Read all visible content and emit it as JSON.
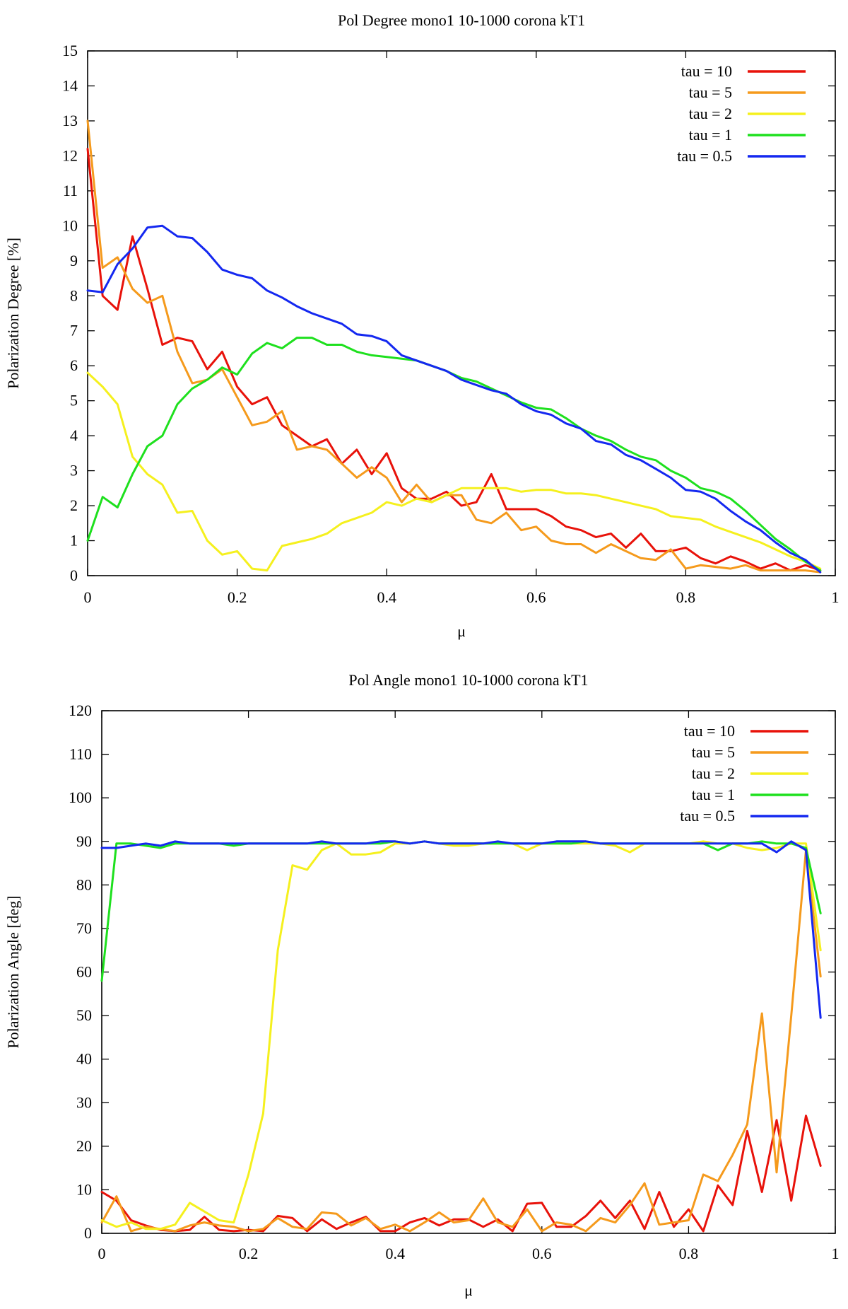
{
  "chart_data": [
    {
      "type": "line",
      "title": "Pol Degree mono1 10-1000 corona kT1",
      "xlabel": "μ",
      "ylabel": "Polarization Degree [%]",
      "xlim": [
        0,
        1
      ],
      "ylim": [
        0,
        15
      ],
      "xticks": [
        0,
        0.2,
        0.4,
        0.6,
        0.8,
        1
      ],
      "xtick_labels": [
        "0",
        "0.2",
        "0.4",
        "0.6",
        "0.8",
        "1"
      ],
      "yticks": [
        0,
        1,
        2,
        3,
        4,
        5,
        6,
        7,
        8,
        9,
        10,
        11,
        12,
        13,
        14,
        15
      ],
      "ytick_labels": [
        "0",
        "1",
        "2",
        "3",
        "4",
        "5",
        "6",
        "7",
        "8",
        "9",
        "10",
        "11",
        "12",
        "13",
        "14",
        "15"
      ],
      "grid": false,
      "legend_position": "top-right",
      "x": [
        0,
        0.02,
        0.04,
        0.06,
        0.08,
        0.1,
        0.12,
        0.14,
        0.16,
        0.18,
        0.2,
        0.22,
        0.24,
        0.26,
        0.28,
        0.3,
        0.32,
        0.34,
        0.36,
        0.38,
        0.4,
        0.42,
        0.44,
        0.46,
        0.48,
        0.5,
        0.52,
        0.54,
        0.56,
        0.58,
        0.6,
        0.62,
        0.64,
        0.66,
        0.68,
        0.7,
        0.72,
        0.74,
        0.76,
        0.78,
        0.8,
        0.82,
        0.84,
        0.86,
        0.88,
        0.9,
        0.92,
        0.94,
        0.96,
        0.98
      ],
      "series": [
        {
          "name": "tau = 10",
          "color": "#e8120a",
          "values": [
            12.2,
            8.0,
            7.6,
            9.7,
            8.2,
            6.6,
            6.8,
            6.7,
            5.9,
            6.4,
            5.4,
            4.9,
            5.1,
            4.3,
            4.0,
            3.7,
            3.9,
            3.2,
            3.6,
            2.9,
            3.5,
            2.5,
            2.2,
            2.2,
            2.4,
            2.0,
            2.1,
            2.9,
            1.9,
            1.9,
            1.9,
            1.7,
            1.4,
            1.3,
            1.1,
            1.2,
            0.8,
            1.2,
            0.7,
            0.7,
            0.8,
            0.5,
            0.35,
            0.55,
            0.4,
            0.2,
            0.35,
            0.15,
            0.3,
            0.15
          ]
        },
        {
          "name": "tau = 5",
          "color": "#f59a1c",
          "values": [
            13.0,
            8.8,
            9.1,
            8.2,
            7.8,
            8.0,
            6.4,
            5.5,
            5.6,
            5.9,
            5.1,
            4.3,
            4.4,
            4.7,
            3.6,
            3.7,
            3.6,
            3.2,
            2.8,
            3.1,
            2.8,
            2.1,
            2.6,
            2.1,
            2.3,
            2.3,
            1.6,
            1.5,
            1.8,
            1.3,
            1.4,
            1.0,
            0.9,
            0.9,
            0.65,
            0.9,
            0.7,
            0.5,
            0.45,
            0.75,
            0.2,
            0.3,
            0.25,
            0.2,
            0.3,
            0.15,
            0.15,
            0.15,
            0.15,
            0.1
          ]
        },
        {
          "name": "tau = 2",
          "color": "#f5f01e",
          "values": [
            5.8,
            5.4,
            4.9,
            3.4,
            2.9,
            2.6,
            1.8,
            1.85,
            1.0,
            0.6,
            0.7,
            0.2,
            0.15,
            0.85,
            0.95,
            1.05,
            1.2,
            1.5,
            1.65,
            1.8,
            2.1,
            2.0,
            2.2,
            2.1,
            2.3,
            2.5,
            2.5,
            2.5,
            2.5,
            2.4,
            2.45,
            2.45,
            2.35,
            2.35,
            2.3,
            2.2,
            2.1,
            2.0,
            1.9,
            1.7,
            1.65,
            1.6,
            1.4,
            1.25,
            1.1,
            0.95,
            0.75,
            0.55,
            0.4,
            0.2
          ]
        },
        {
          "name": "tau = 1",
          "color": "#1ee01e",
          "values": [
            1.0,
            2.25,
            1.95,
            2.9,
            3.7,
            4.0,
            4.9,
            5.35,
            5.6,
            5.95,
            5.75,
            6.35,
            6.65,
            6.5,
            6.8,
            6.8,
            6.6,
            6.6,
            6.4,
            6.3,
            6.25,
            6.2,
            6.15,
            6.0,
            5.85,
            5.65,
            5.55,
            5.35,
            5.15,
            4.95,
            4.8,
            4.75,
            4.5,
            4.2,
            4.0,
            3.85,
            3.6,
            3.4,
            3.3,
            3.0,
            2.8,
            2.5,
            2.4,
            2.2,
            1.85,
            1.45,
            1.05,
            0.75,
            0.4,
            0.15
          ]
        },
        {
          "name": "tau = 0.5",
          "color": "#1428f0",
          "values": [
            8.15,
            8.1,
            8.9,
            9.35,
            9.95,
            10.0,
            9.7,
            9.65,
            9.25,
            8.75,
            8.6,
            8.5,
            8.15,
            7.95,
            7.7,
            7.5,
            7.35,
            7.2,
            6.9,
            6.85,
            6.7,
            6.3,
            6.15,
            6.0,
            5.85,
            5.6,
            5.45,
            5.3,
            5.2,
            4.9,
            4.7,
            4.6,
            4.35,
            4.2,
            3.85,
            3.75,
            3.45,
            3.3,
            3.05,
            2.8,
            2.45,
            2.4,
            2.2,
            1.85,
            1.55,
            1.3,
            0.95,
            0.65,
            0.45,
            0.1
          ]
        }
      ]
    },
    {
      "type": "line",
      "title": "Pol Angle mono1 10-1000 corona kT1",
      "xlabel": "μ",
      "ylabel": "Polarization Angle [deg]",
      "xlim": [
        0,
        1
      ],
      "ylim": [
        0,
        120
      ],
      "xticks": [
        0,
        0.2,
        0.4,
        0.6,
        0.8,
        1
      ],
      "xtick_labels": [
        "0",
        "0.2",
        "0.4",
        "0.6",
        "0.8",
        "1"
      ],
      "yticks": [
        0,
        10,
        20,
        30,
        40,
        50,
        60,
        70,
        80,
        90,
        100,
        110,
        120
      ],
      "ytick_labels": [
        "0",
        "10",
        "20",
        "30",
        "40",
        "50",
        "60",
        "70",
        "80",
        "90",
        "100",
        "110",
        "120"
      ],
      "grid": false,
      "legend_position": "top-right",
      "x": [
        0,
        0.02,
        0.04,
        0.06,
        0.08,
        0.1,
        0.12,
        0.14,
        0.16,
        0.18,
        0.2,
        0.22,
        0.24,
        0.26,
        0.28,
        0.3,
        0.32,
        0.34,
        0.36,
        0.38,
        0.4,
        0.42,
        0.44,
        0.46,
        0.48,
        0.5,
        0.52,
        0.54,
        0.56,
        0.58,
        0.6,
        0.62,
        0.64,
        0.66,
        0.68,
        0.7,
        0.72,
        0.74,
        0.76,
        0.78,
        0.8,
        0.82,
        0.84,
        0.86,
        0.88,
        0.9,
        0.92,
        0.94,
        0.96,
        0.98
      ],
      "series": [
        {
          "name": "tau = 10",
          "color": "#e8120a",
          "values": [
            9.5,
            7.5,
            3.0,
            1.8,
            0.8,
            0.5,
            0.8,
            3.8,
            0.8,
            0.5,
            0.8,
            0.5,
            4.0,
            3.5,
            0.5,
            3.2,
            1.0,
            2.5,
            3.8,
            0.5,
            0.5,
            2.5,
            3.5,
            1.8,
            3.2,
            3.2,
            1.5,
            3.2,
            0.5,
            6.8,
            7.0,
            1.5,
            1.5,
            4.0,
            7.5,
            3.5,
            7.5,
            1.0,
            9.5,
            1.5,
            5.5,
            0.5,
            11.0,
            6.5,
            23.5,
            9.5,
            26.0,
            7.5,
            27.0,
            15.5
          ]
        },
        {
          "name": "tau = 5",
          "color": "#f59a1c",
          "values": [
            2.5,
            8.5,
            0.5,
            1.5,
            1.0,
            0.5,
            1.8,
            2.5,
            1.8,
            1.5,
            0.5,
            1.0,
            3.5,
            1.5,
            1.0,
            4.8,
            4.5,
            1.8,
            3.5,
            1.0,
            2.0,
            0.5,
            2.5,
            4.8,
            2.5,
            3.0,
            8.0,
            2.5,
            1.5,
            5.5,
            0.5,
            2.5,
            2.0,
            0.5,
            3.5,
            2.5,
            6.5,
            11.5,
            2.0,
            2.5,
            3.0,
            13.5,
            12.0,
            18.0,
            25.0,
            50.5,
            14.0,
            50.0,
            88.0,
            59.0
          ]
        },
        {
          "name": "tau = 2",
          "color": "#f5f01e",
          "values": [
            3.0,
            1.5,
            2.5,
            1.0,
            1.0,
            2.0,
            7.0,
            5.0,
            3.0,
            2.5,
            13.5,
            27.5,
            65.0,
            84.5,
            83.5,
            88.0,
            89.5,
            87.0,
            87.0,
            87.5,
            89.5,
            89.5,
            90.0,
            89.5,
            89.0,
            89.0,
            89.5,
            89.5,
            89.5,
            88.0,
            89.5,
            89.5,
            89.5,
            89.5,
            89.5,
            89.0,
            87.5,
            89.5,
            89.5,
            89.5,
            89.5,
            90.0,
            89.5,
            89.5,
            88.5,
            88.0,
            88.5,
            89.5,
            89.5,
            65.0
          ]
        },
        {
          "name": "tau = 1",
          "color": "#1ee01e",
          "values": [
            58.0,
            89.5,
            89.5,
            89.0,
            88.5,
            89.5,
            89.5,
            89.5,
            89.5,
            89.0,
            89.5,
            89.5,
            89.5,
            89.5,
            89.5,
            89.5,
            89.5,
            89.5,
            89.5,
            89.5,
            90.0,
            89.5,
            90.0,
            89.5,
            89.5,
            89.5,
            89.5,
            89.5,
            89.5,
            89.5,
            89.5,
            89.5,
            89.5,
            90.0,
            89.5,
            89.5,
            89.5,
            89.5,
            89.5,
            89.5,
            89.5,
            89.5,
            88.0,
            89.5,
            89.5,
            90.0,
            89.5,
            89.5,
            88.5,
            73.5
          ]
        },
        {
          "name": "tau = 0.5",
          "color": "#1428f0",
          "values": [
            88.5,
            88.5,
            89.0,
            89.5,
            89.0,
            90.0,
            89.5,
            89.5,
            89.5,
            89.5,
            89.5,
            89.5,
            89.5,
            89.5,
            89.5,
            90.0,
            89.5,
            89.5,
            89.5,
            90.0,
            90.0,
            89.5,
            90.0,
            89.5,
            89.5,
            89.5,
            89.5,
            90.0,
            89.5,
            89.5,
            89.5,
            90.0,
            90.0,
            90.0,
            89.5,
            89.5,
            89.5,
            89.5,
            89.5,
            89.5,
            89.5,
            89.5,
            89.5,
            89.5,
            89.5,
            89.5,
            87.5,
            90.0,
            88.0,
            49.5
          ]
        }
      ]
    }
  ]
}
